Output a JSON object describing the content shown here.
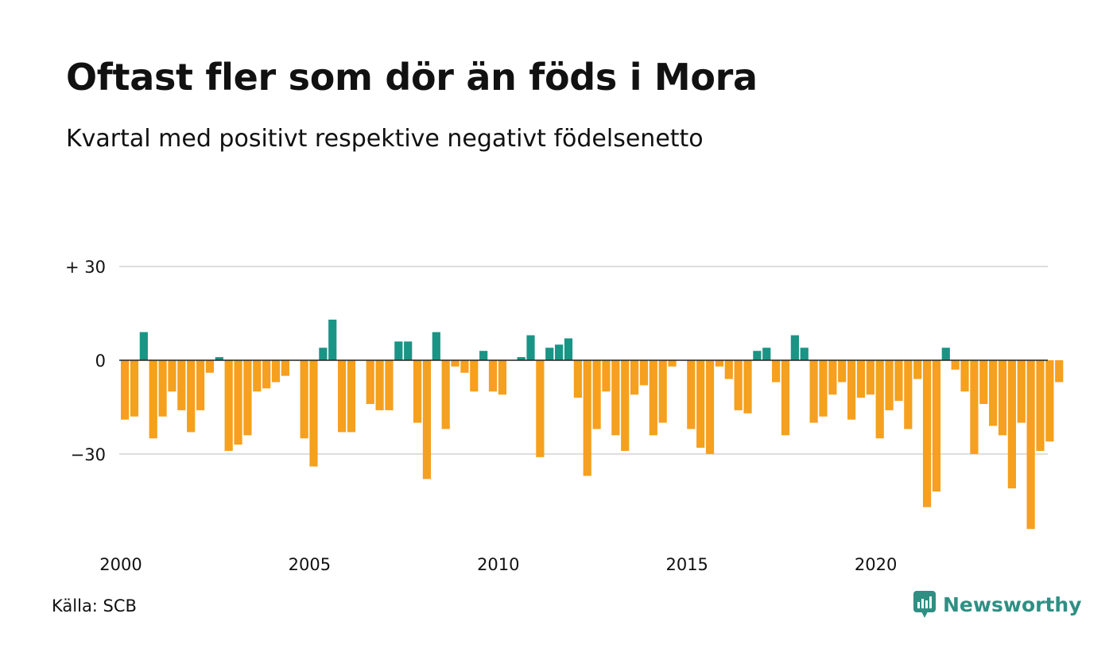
{
  "title": "Oftast fler som dör än föds i Mora",
  "subtitle": "Kvartal med positivt respektive negativt födelsenetto",
  "source": "Källa: SCB",
  "brand": "Newsworthy",
  "icons": {
    "brand_logo": "newsworthy-logo-icon"
  },
  "colors": {
    "positive": "#1a9485",
    "negative": "#f5a01e",
    "grid": "#dddddd",
    "zero_line": "#222222",
    "brand": "#2f8f83"
  },
  "chart_data": {
    "type": "bar",
    "start_year": 2000,
    "periods_per_year": 4,
    "ylim": [
      -55,
      30
    ],
    "yticks": [
      30,
      0,
      -30
    ],
    "ytick_labels": [
      "+ 30",
      "0",
      "−30"
    ],
    "xticks": [
      2000,
      2005,
      2010,
      2015,
      2020
    ],
    "xtick_labels": [
      "2000",
      "2005",
      "2010",
      "2015",
      "2020"
    ],
    "grid": true,
    "values": [
      -19,
      -18,
      9,
      -25,
      -18,
      -10,
      -16,
      -23,
      -16,
      -4,
      1,
      -29,
      -27,
      -24,
      -10,
      -9,
      -7,
      -5,
      0,
      -25,
      -34,
      4,
      13,
      -23,
      -23,
      0,
      -14,
      -16,
      -16,
      6,
      6,
      -20,
      -38,
      9,
      -22,
      -2,
      -4,
      -10,
      3,
      -10,
      -11,
      0,
      1,
      8,
      -31,
      4,
      5,
      7,
      -12,
      -37,
      -22,
      -10,
      -24,
      -29,
      -11,
      -8,
      -24,
      -20,
      -2,
      0,
      -22,
      -28,
      -30,
      -2,
      -6,
      -16,
      -17,
      3,
      4,
      -7,
      -24,
      8,
      4,
      -20,
      -18,
      -11,
      -7,
      -19,
      -12,
      -11,
      -25,
      -16,
      -13,
      -22,
      -6,
      -47,
      -42,
      4,
      -3,
      -10,
      -30,
      -14,
      -21,
      -24,
      -41,
      -20,
      -54,
      -29,
      -26,
      -7
    ]
  }
}
